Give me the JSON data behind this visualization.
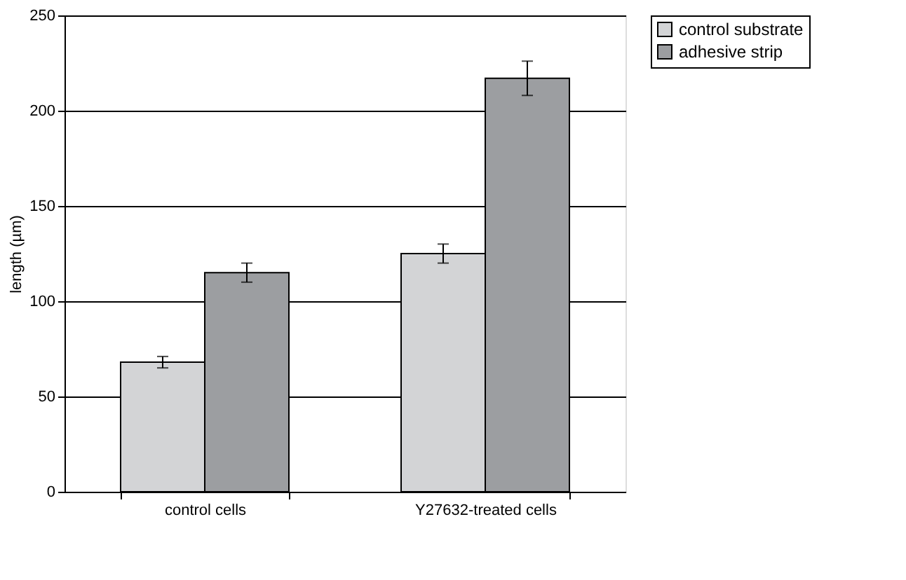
{
  "chart_data": {
    "type": "bar",
    "ylabel": "length (µm)",
    "categories": [
      "control cells",
      "Y27632-treated cells"
    ],
    "series": [
      {
        "name": "control substrate",
        "color": "#d3d4d6",
        "values": [
          68,
          125
        ],
        "errors": [
          3,
          5
        ]
      },
      {
        "name": "adhesive strip",
        "color": "#9c9ea1",
        "values": [
          115,
          217
        ],
        "errors": [
          5,
          9
        ]
      }
    ],
    "ylim": [
      0,
      250
    ],
    "yticks": [
      0,
      50,
      100,
      150,
      200,
      250
    ],
    "grid": "y",
    "legend": "right"
  }
}
